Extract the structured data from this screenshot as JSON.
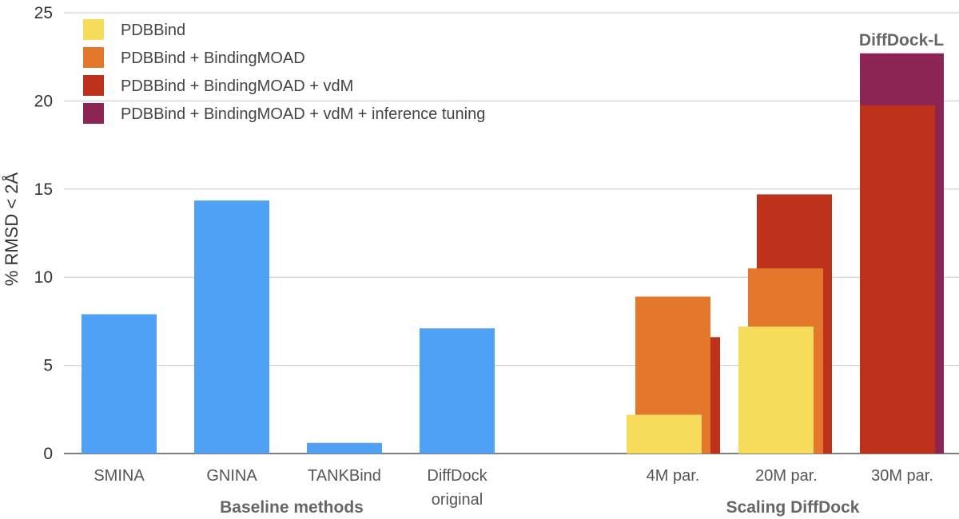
{
  "chart_data": {
    "type": "bar",
    "ylabel": "% RMSD < 2Å",
    "ylim": [
      0,
      25
    ],
    "yticks": [
      0,
      5,
      10,
      15,
      20,
      25
    ],
    "grid": true,
    "legend_position": "top-left",
    "colors": {
      "baseline": "#4ea1f5",
      "PDBBind": "#f7db5a",
      "PDBBind + BindingMOAD": "#e3782d",
      "PDBBind + BindingMOAD + vdM": "#be321c",
      "PDBBind + BindingMOAD + vdM + inference tuning": "#8c2454"
    },
    "legend": [
      "PDBBind",
      "PDBBind + BindingMOAD",
      "PDBBind + BindingMOAD + vdM",
      "PDBBind + BindingMOAD + vdM + inference tuning"
    ],
    "groups": [
      {
        "label": "Baseline methods",
        "categories": [
          {
            "label": "SMINA",
            "value": 7.9
          },
          {
            "label": "GNINA",
            "value": 14.35
          },
          {
            "label": "TANKBind",
            "value": 0.6
          },
          {
            "label": "DiffDock\noriginal",
            "value": 7.1
          }
        ]
      },
      {
        "label": "Scaling DiffDock",
        "categories": [
          {
            "label": "4M par.",
            "values": {
              "PDBBind": 2.2,
              "PDBBind + BindingMOAD": 8.9,
              "PDBBind + BindingMOAD + vdM": 6.6
            }
          },
          {
            "label": "20M par.",
            "values": {
              "PDBBind": 7.2,
              "PDBBind + BindingMOAD": 10.5,
              "PDBBind + BindingMOAD + vdM": 14.7
            }
          },
          {
            "label": "30M par.",
            "values": {
              "PDBBind + BindingMOAD + vdM": 19.75,
              "PDBBind + BindingMOAD + vdM + inference tuning": 22.7
            }
          }
        ]
      }
    ],
    "annotations": [
      {
        "text": "DiffDock-L",
        "category": "30M par.",
        "value": 22.7
      }
    ]
  }
}
